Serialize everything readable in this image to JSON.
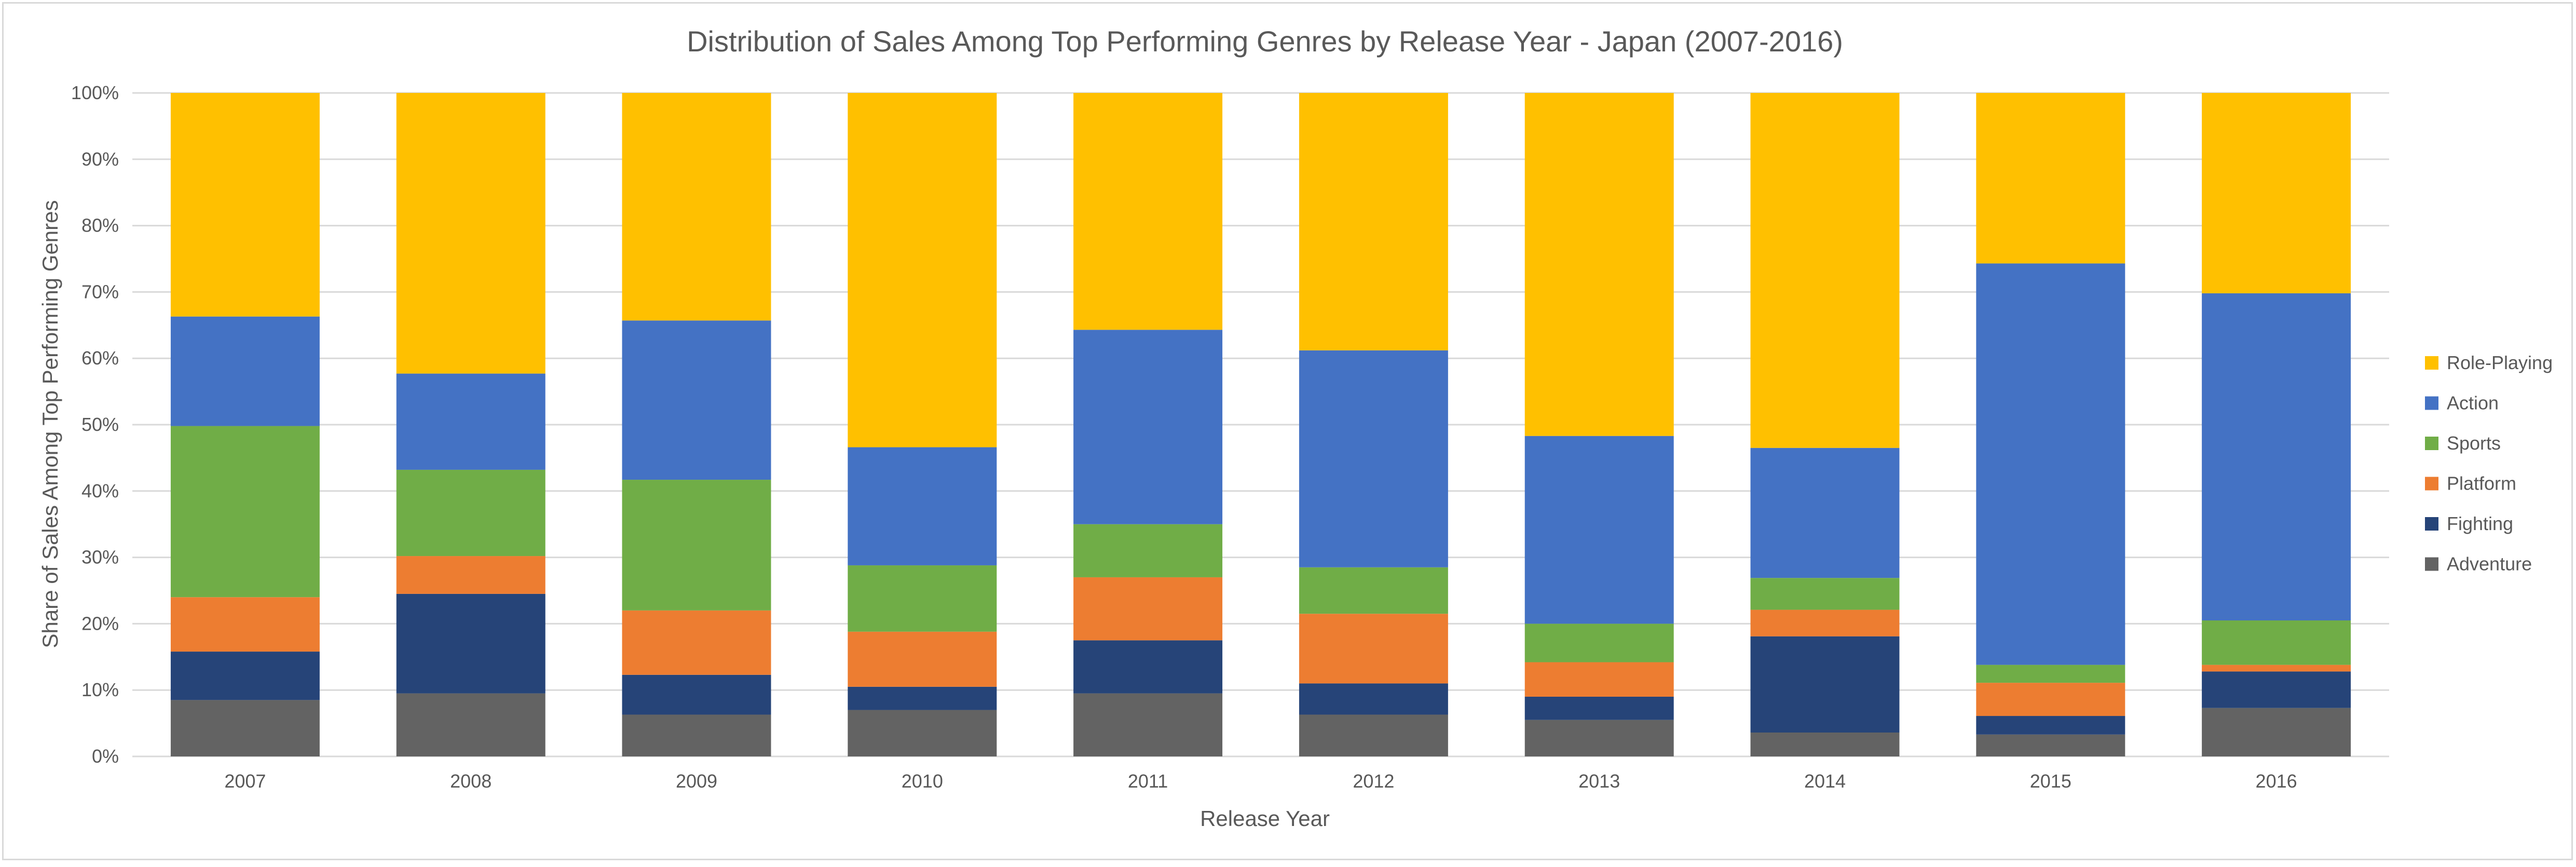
{
  "chart_data": {
    "type": "bar",
    "stacked": "percent",
    "title": "Distribution of Sales Among Top Performing Genres by Release Year - Japan (2007-2016)",
    "xlabel": "Release Year",
    "ylabel": "Share of Sales Among Top Performing Genres",
    "ylim": [
      0,
      100
    ],
    "yticks": [
      "0%",
      "10%",
      "20%",
      "30%",
      "40%",
      "50%",
      "60%",
      "70%",
      "80%",
      "90%",
      "100%"
    ],
    "grid": "horizontal",
    "legend_position": "right",
    "categories": [
      "2007",
      "2008",
      "2009",
      "2010",
      "2011",
      "2012",
      "2013",
      "2014",
      "2015",
      "2016"
    ],
    "series": [
      {
        "name": "Adventure",
        "color": "#636363",
        "values": [
          8.5,
          9.5,
          6.3,
          7.0,
          9.5,
          6.3,
          5.5,
          3.6,
          3.3,
          7.3
        ]
      },
      {
        "name": "Fighting",
        "color": "#264478",
        "values": [
          7.3,
          15.0,
          6.0,
          3.5,
          8.0,
          4.7,
          3.5,
          14.5,
          2.8,
          5.5
        ]
      },
      {
        "name": "Platform",
        "color": "#ed7d31",
        "values": [
          8.2,
          5.7,
          9.7,
          8.3,
          9.5,
          10.5,
          5.2,
          4.0,
          5.0,
          1.0
        ]
      },
      {
        "name": "Sports",
        "color": "#70ad47",
        "values": [
          25.8,
          13.0,
          19.7,
          10.0,
          8.0,
          7.0,
          5.8,
          4.8,
          2.7,
          6.7
        ]
      },
      {
        "name": "Action",
        "color": "#4472c4",
        "values": [
          16.5,
          14.5,
          24.0,
          17.8,
          29.3,
          32.7,
          28.3,
          19.6,
          60.5,
          49.3
        ]
      },
      {
        "name": "Role-Playing",
        "color": "#ffc000",
        "values": [
          33.7,
          42.3,
          34.3,
          53.4,
          35.7,
          38.8,
          51.7,
          53.5,
          25.7,
          30.2
        ]
      }
    ]
  }
}
